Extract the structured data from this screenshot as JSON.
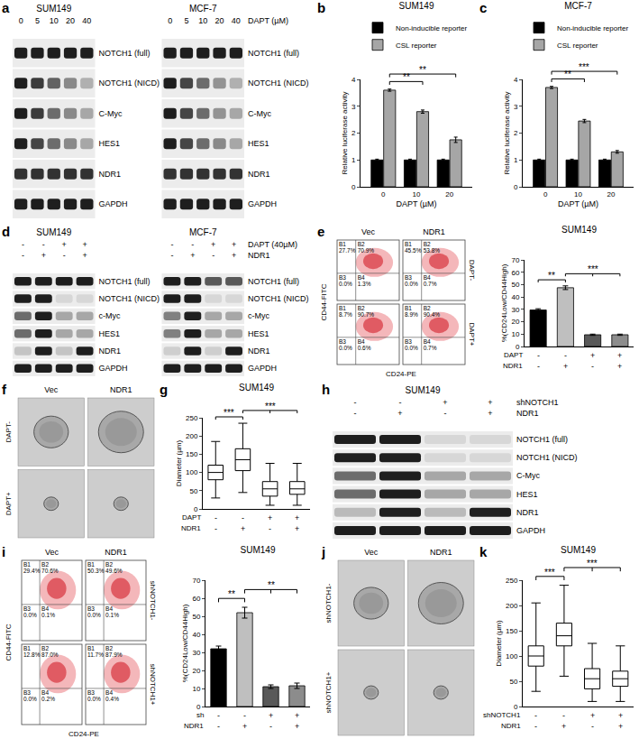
{
  "blots": [
    {
      "letter": "a",
      "headers": [
        {
          "name": "DAPT (µM)",
          "labels": [
            "0",
            "5",
            "10",
            "20",
            "40"
          ]
        }
      ],
      "rows": [
        "NOTCH1 (full)",
        "NOTCH1 (NICD)",
        "C-Myc",
        "HES1",
        "NDR1",
        "GAPDH"
      ],
      "groups": [
        {
          "name": "SUM149",
          "intensities": [
            [
              1,
              1,
              1,
              1,
              1
            ],
            [
              1,
              0.85,
              0.65,
              0.45,
              0.25
            ],
            [
              1,
              0.85,
              0.6,
              0.45,
              0.3
            ],
            [
              1,
              0.8,
              0.6,
              0.45,
              0.3
            ],
            [
              0.9,
              0.9,
              0.9,
              0.9,
              0.9
            ],
            [
              1,
              1,
              1,
              1,
              1
            ]
          ]
        },
        {
          "name": "MCF-7",
          "intensities": [
            [
              1,
              1,
              1,
              1,
              1
            ],
            [
              1,
              0.8,
              0.6,
              0.4,
              0.25
            ],
            [
              1,
              0.8,
              0.6,
              0.4,
              0.3
            ],
            [
              1,
              0.8,
              0.6,
              0.45,
              0.3
            ],
            [
              0.9,
              0.9,
              0.9,
              0.9,
              0.9
            ],
            [
              1,
              1,
              1,
              1,
              1
            ]
          ]
        }
      ]
    },
    {
      "letter": "d",
      "headers": [
        {
          "name": "DAPT (40µM)",
          "labels": [
            "-",
            "-",
            "+",
            "+"
          ]
        },
        {
          "name": "NDR1",
          "labels": [
            "-",
            "+",
            "-",
            "+"
          ]
        }
      ],
      "rows": [
        "NOTCH1 (full)",
        "NOTCH1 (NICD)",
        "c-Myc",
        "HES1",
        "NDR1",
        "GAPDH"
      ],
      "groups": [
        {
          "name": "SUM149",
          "intensities": [
            [
              1,
              1,
              1,
              1
            ],
            [
              1,
              1,
              0.05,
              0.05
            ],
            [
              0.6,
              1,
              0.3,
              0.3
            ],
            [
              0.6,
              1,
              0.3,
              0.3
            ],
            [
              0.15,
              1,
              0.15,
              1
            ],
            [
              1,
              1,
              1,
              1
            ]
          ]
        },
        {
          "name": "MCF-7",
          "intensities": [
            [
              1,
              1,
              0.7,
              0.7
            ],
            [
              1,
              1,
              0.05,
              0.05
            ],
            [
              0.5,
              1,
              0.3,
              0.3
            ],
            [
              0.5,
              1,
              0.3,
              0.3
            ],
            [
              0.1,
              1,
              0.1,
              1
            ],
            [
              1,
              1,
              1,
              1
            ]
          ]
        }
      ]
    },
    {
      "letter": "h",
      "headers": [
        {
          "name": "shNOTCH1",
          "labels": [
            "-",
            "-",
            "+",
            "+"
          ]
        },
        {
          "name": "NDR1",
          "labels": [
            "-",
            "+",
            "-",
            "+"
          ]
        }
      ],
      "rows": [
        "NOTCH1 (full)",
        "NOTCH1 (NICD)",
        "C-Myc",
        "HES1",
        "NDR1",
        "GAPDH"
      ],
      "groups": [
        {
          "name": "SUM149",
          "intensities": [
            [
              1,
              1,
              0.05,
              0.05
            ],
            [
              1,
              1,
              0.05,
              0.05
            ],
            [
              0.6,
              1,
              0.3,
              0.3
            ],
            [
              0.6,
              1,
              0.3,
              0.3
            ],
            [
              0.2,
              1,
              0.2,
              1
            ],
            [
              1,
              1,
              1,
              1
            ]
          ]
        }
      ]
    }
  ],
  "flow": [
    {
      "letter": "e",
      "x_label": "CD24-PE",
      "y_label": "CD44-FITC",
      "columns": [
        "Vec",
        "NDR1"
      ],
      "rows": [
        "DAPT-",
        "DAPT+"
      ],
      "plots": [
        [
          [
            {
              "name": "B1",
              "text": "27.7%"
            },
            {
              "name": "B2",
              "text": "70.9%"
            },
            {
              "name": "B3",
              "text": "0.0%"
            },
            {
              "name": "B4",
              "text": "1.3%"
            }
          ],
          [
            {
              "name": "B1",
              "text": "45.5%"
            },
            {
              "name": "B2",
              "text": "53.8%"
            },
            {
              "name": "B3",
              "text": "0.0%"
            },
            {
              "name": "B4",
              "text": "0.7%"
            }
          ]
        ],
        [
          [
            {
              "name": "B1",
              "text": "8.7%"
            },
            {
              "name": "B2",
              "text": "90.7%"
            },
            {
              "name": "B3",
              "text": "0.0%"
            },
            {
              "name": "B4",
              "text": "0.6%"
            }
          ],
          [
            {
              "name": "B1",
              "text": "8.9%"
            },
            {
              "name": "B2",
              "text": "90.4%"
            },
            {
              "name": "B3",
              "text": "0.0%"
            },
            {
              "name": "B4",
              "text": "0.7%"
            }
          ]
        ]
      ]
    },
    {
      "letter": "i",
      "x_label": "CD24-PE",
      "y_label": "CD44-FITC",
      "columns": [
        "Vec",
        "NDR1"
      ],
      "rows": [
        "shNOTCH1-",
        "shNOTCH1+"
      ],
      "plots": [
        [
          [
            {
              "name": "B1",
              "text": "29.4%"
            },
            {
              "name": "B2",
              "text": "70.6%"
            },
            {
              "name": "B3",
              "text": "0.0%"
            },
            {
              "name": "B4",
              "text": "0.1%"
            }
          ],
          [
            {
              "name": "B1",
              "text": "50.3%"
            },
            {
              "name": "B2",
              "text": "49.6%"
            },
            {
              "name": "B3",
              "text": "0.0%"
            },
            {
              "name": "B4",
              "text": "0.1%"
            }
          ]
        ],
        [
          [
            {
              "name": "B1",
              "text": "12.8%"
            },
            {
              "name": "B2",
              "text": "87.0%"
            },
            {
              "name": "B3",
              "text": "0.0%"
            },
            {
              "name": "B4",
              "text": "0.2%"
            }
          ],
          [
            {
              "name": "B1",
              "text": "11.7%"
            },
            {
              "name": "B2",
              "text": "87.9%"
            },
            {
              "name": "B3",
              "text": "0.0%"
            },
            {
              "name": "B4",
              "text": "0.4%"
            }
          ]
        ]
      ]
    }
  ],
  "images": [
    {
      "letter": "f",
      "columns": [
        "Vec",
        "NDR1"
      ],
      "rows": [
        "DAPT-",
        "DAPT+"
      ]
    },
    {
      "letter": "j",
      "columns": [
        "Vec",
        "NDR1"
      ],
      "rows": [
        "shNOTCH1-",
        "shNOTCH1+"
      ]
    }
  ],
  "chart_data": [
    {
      "letter": "b",
      "type": "bar",
      "title": "SUM149",
      "x_label": "DAPT (µM)",
      "y_label": "Relative luciferase activity",
      "categories": [
        "0",
        "10",
        "20"
      ],
      "series": [
        {
          "name": "Non-inducible reporter",
          "color": "#000000",
          "values": [
            1,
            1,
            1
          ],
          "errors": [
            0.03,
            0.03,
            0.03
          ]
        },
        {
          "name": "CSL reporter",
          "color": "#a6a6a6",
          "values": [
            3.6,
            2.8,
            1.75
          ],
          "errors": [
            0.04,
            0.06,
            0.1
          ]
        }
      ],
      "ylim": [
        0,
        4
      ],
      "yticks": [
        0,
        1,
        2,
        3,
        4
      ],
      "legend": "top right",
      "significance": [
        {
          "series": 1,
          "from": 0,
          "to": 1,
          "label": "**"
        },
        {
          "series": 1,
          "from": 0,
          "to": 2,
          "label": "**"
        }
      ]
    },
    {
      "letter": "c",
      "type": "bar",
      "title": "MCF-7",
      "x_label": "DAPT (µM)",
      "y_label": "Relative luciferase activity",
      "categories": [
        "0",
        "10",
        "20"
      ],
      "series": [
        {
          "name": "Non-inducible reporter",
          "color": "#000000",
          "values": [
            1,
            1,
            1
          ],
          "errors": [
            0.03,
            0.03,
            0.03
          ]
        },
        {
          "name": "CSL reporter",
          "color": "#a6a6a6",
          "values": [
            3.7,
            2.45,
            1.3
          ],
          "errors": [
            0.04,
            0.06,
            0.05
          ]
        }
      ],
      "ylim": [
        0,
        4
      ],
      "yticks": [
        0,
        1,
        2,
        3,
        4
      ],
      "legend": "top right",
      "significance": [
        {
          "series": 1,
          "from": 0,
          "to": 1,
          "label": "**"
        },
        {
          "series": 1,
          "from": 0,
          "to": 2,
          "label": "***"
        }
      ]
    },
    {
      "type": "bar",
      "title": "SUM149",
      "y_label": "%(CD24Low/CD44High)",
      "categories": [
        null,
        null,
        null,
        null
      ],
      "values": [
        29.5,
        47.5,
        9.5,
        9.5
      ],
      "errors": [
        1,
        1.5,
        0.5,
        0.5
      ],
      "colors": [
        "#000000",
        "#bfbfbf",
        "#595959",
        "#8c8c8c"
      ],
      "ylim": [
        0,
        70
      ],
      "yticks": [
        0,
        10,
        20,
        30,
        40,
        50,
        60,
        70
      ],
      "conditions": [
        {
          "name": "DAPT",
          "signs": [
            "-",
            "-",
            "+",
            "+"
          ]
        },
        {
          "name": "NDR1",
          "signs": [
            "-",
            "+",
            "-",
            "+"
          ]
        }
      ],
      "significance": [
        {
          "from": 0,
          "to": [
            1
          ],
          "label": "**"
        },
        {
          "from": 1,
          "to": [
            2,
            3
          ],
          "label": "***"
        }
      ]
    },
    {
      "letter": "g",
      "type": "box",
      "title": "SUM149",
      "y_label": "Diameter (µm)",
      "categories": [
        null,
        null,
        null,
        null
      ],
      "boxes": [
        {
          "min": 30,
          "q1": 80,
          "median": 100,
          "q3": 120,
          "max": 185
        },
        {
          "min": 45,
          "q1": 105,
          "median": 135,
          "q3": 165,
          "max": 235
        },
        {
          "min": 10,
          "q1": 35,
          "median": 55,
          "q3": 75,
          "max": 125
        },
        {
          "min": 10,
          "q1": 40,
          "median": 55,
          "q3": 75,
          "max": 125
        }
      ],
      "ylim": [
        0,
        250
      ],
      "yticks": [
        0,
        50,
        100,
        150,
        200,
        250
      ],
      "conditions": [
        {
          "name": "DAPT",
          "signs": [
            "-",
            "-",
            "+",
            "+"
          ]
        },
        {
          "name": "NDR1",
          "signs": [
            "-",
            "+",
            "-",
            "+"
          ]
        }
      ],
      "significance": [
        {
          "from": 0,
          "to": [
            1
          ],
          "label": "***"
        },
        {
          "from": 1,
          "to": [
            2,
            3
          ],
          "label": "***"
        }
      ]
    },
    {
      "type": "bar",
      "title": "SUM149",
      "y_label": "%(CD24Low/CD44High)",
      "categories": [
        null,
        null,
        null,
        null
      ],
      "values": [
        32,
        52,
        11,
        11.5
      ],
      "errors": [
        1.5,
        3,
        1,
        1.5
      ],
      "colors": [
        "#000000",
        "#bfbfbf",
        "#595959",
        "#8c8c8c"
      ],
      "ylim": [
        0,
        70
      ],
      "yticks": [
        0,
        10,
        20,
        30,
        40,
        50,
        60,
        70
      ],
      "conditions": [
        {
          "name": "sh",
          "signs": [
            "-",
            "-",
            "+",
            "+"
          ]
        },
        {
          "name": "NDR1",
          "signs": [
            "-",
            "+",
            "-",
            "+"
          ]
        }
      ],
      "significance": [
        {
          "from": 0,
          "to": [
            1
          ],
          "label": "**"
        },
        {
          "from": 1,
          "to": [
            2,
            3
          ],
          "label": "**"
        }
      ]
    },
    {
      "letter": "k",
      "type": "box",
      "title": "SUM149",
      "y_label": "Diameter (µm)",
      "categories": [
        null,
        null,
        null,
        null
      ],
      "boxes": [
        {
          "min": 30,
          "q1": 80,
          "median": 100,
          "q3": 120,
          "max": 205
        },
        {
          "min": 60,
          "q1": 120,
          "median": 140,
          "q3": 165,
          "max": 240
        },
        {
          "min": 10,
          "q1": 35,
          "median": 55,
          "q3": 75,
          "max": 125
        },
        {
          "min": 10,
          "q1": 40,
          "median": 55,
          "q3": 70,
          "max": 120
        }
      ],
      "ylim": [
        0,
        250
      ],
      "yticks": [
        0,
        50,
        100,
        150,
        200,
        250
      ],
      "conditions": [
        {
          "name": "shNOTCH1",
          "signs": [
            "-",
            "-",
            "+",
            "+"
          ]
        },
        {
          "name": "NDR1",
          "signs": [
            "-",
            "+",
            "-",
            "+"
          ]
        }
      ],
      "significance": [
        {
          "from": 0,
          "to": [
            1
          ],
          "label": "***"
        },
        {
          "from": 1,
          "to": [
            2,
            3
          ],
          "label": "***"
        }
      ]
    }
  ]
}
